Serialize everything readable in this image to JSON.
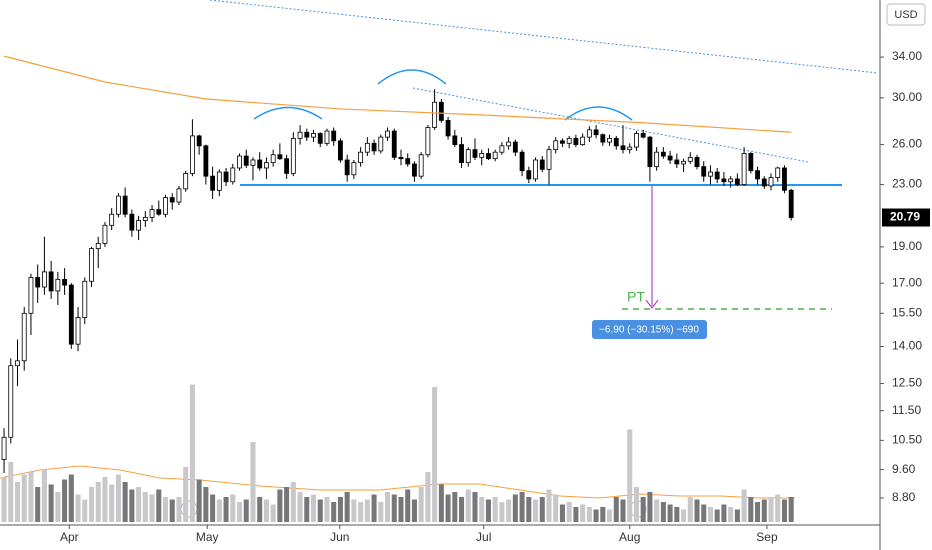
{
  "chart_data": {
    "type": "candlestick",
    "log_scale": true,
    "currency": "USD",
    "ylim": [
      8.1,
      40.5
    ],
    "yticks": [
      {
        "value": 8.8,
        "label": "8.80"
      },
      {
        "value": 9.6,
        "label": "9.60"
      },
      {
        "value": 10.5,
        "label": "10.50"
      },
      {
        "value": 11.5,
        "label": "11.50"
      },
      {
        "value": 12.5,
        "label": "12.50"
      },
      {
        "value": 14,
        "label": "14.00"
      },
      {
        "value": 15.5,
        "label": "15.50"
      },
      {
        "value": 17,
        "label": "17.00"
      },
      {
        "value": 19,
        "label": "19.00"
      },
      {
        "value": 23,
        "label": "23.00"
      },
      {
        "value": 26,
        "label": "26.00"
      },
      {
        "value": 30,
        "label": "30.00"
      },
      {
        "value": 34,
        "label": "34.00"
      }
    ],
    "xticks": [
      {
        "value": 9.7,
        "label": "Apr"
      },
      {
        "value": 30.2,
        "label": "May"
      },
      {
        "value": 49.9,
        "label": "Jun"
      },
      {
        "value": 71.3,
        "label": "Jul"
      },
      {
        "value": 93,
        "label": "Aug"
      },
      {
        "value": 113.4,
        "label": "Sep"
      }
    ],
    "xlim": [
      -0.6,
      130.2
    ],
    "last_price": 20.79,
    "up_color": "#ffffff",
    "down_color": "#000000",
    "candles": [
      [
        9.9,
        10.9,
        9.5,
        10.6
      ],
      [
        10.6,
        13.5,
        10.4,
        13.2
      ],
      [
        13.2,
        14.3,
        12.4,
        13.4
      ],
      [
        13.4,
        15.8,
        13.0,
        15.5
      ],
      [
        15.5,
        17.5,
        14.5,
        17.3
      ],
      [
        17.3,
        18.0,
        16.0,
        16.8
      ],
      [
        16.8,
        19.6,
        16.4,
        17.6
      ],
      [
        17.6,
        18.2,
        16.2,
        16.6
      ],
      [
        16.6,
        17.6,
        15.9,
        17.2
      ],
      [
        17.2,
        17.8,
        16.4,
        16.9
      ],
      [
        16.9,
        17.0,
        13.9,
        14.1
      ],
      [
        14.1,
        15.8,
        13.8,
        15.3
      ],
      [
        15.3,
        17.3,
        15.0,
        17.1
      ],
      [
        17.1,
        19.0,
        16.8,
        18.9
      ],
      [
        18.9,
        19.6,
        17.8,
        19.2
      ],
      [
        19.2,
        20.5,
        19.0,
        20.3
      ],
      [
        20.3,
        21.4,
        20.0,
        21.0
      ],
      [
        21.0,
        22.4,
        20.8,
        22.2
      ],
      [
        22.2,
        22.8,
        20.8,
        21.0
      ],
      [
        21.0,
        21.3,
        19.6,
        20.0
      ],
      [
        20.0,
        20.9,
        19.4,
        20.6
      ],
      [
        20.6,
        21.2,
        20.2,
        20.8
      ],
      [
        20.8,
        21.6,
        20.5,
        21.3
      ],
      [
        21.3,
        21.9,
        20.9,
        21.0
      ],
      [
        21.0,
        22.3,
        20.8,
        22.1
      ],
      [
        22.1,
        22.4,
        21.3,
        21.8
      ],
      [
        21.8,
        22.9,
        21.6,
        22.7
      ],
      [
        22.7,
        24.0,
        22.5,
        23.8
      ],
      [
        23.8,
        28.1,
        23.6,
        26.7
      ],
      [
        26.7,
        26.8,
        25.2,
        25.9
      ],
      [
        25.9,
        26.0,
        23.0,
        23.6
      ],
      [
        23.6,
        24.3,
        22.0,
        22.6
      ],
      [
        22.6,
        24.1,
        22.2,
        23.9
      ],
      [
        23.9,
        24.2,
        22.9,
        23.2
      ],
      [
        23.2,
        24.5,
        23.0,
        24.2
      ],
      [
        24.2,
        25.3,
        24.0,
        25.1
      ],
      [
        25.1,
        25.6,
        24.2,
        24.4
      ],
      [
        24.4,
        25.0,
        23.3,
        24.8
      ],
      [
        24.8,
        25.4,
        24.0,
        24.2
      ],
      [
        24.2,
        25.0,
        23.4,
        24.6
      ],
      [
        24.6,
        25.6,
        24.3,
        25.2
      ],
      [
        25.2,
        26.1,
        24.8,
        24.9
      ],
      [
        24.9,
        25.2,
        23.4,
        23.8
      ],
      [
        23.8,
        27.0,
        23.6,
        26.5
      ],
      [
        26.5,
        27.6,
        26.0,
        27.0
      ],
      [
        27.0,
        27.3,
        26.3,
        26.6
      ],
      [
        26.6,
        27.2,
        26.2,
        26.9
      ],
      [
        26.9,
        27.0,
        25.8,
        26.1
      ],
      [
        26.1,
        27.3,
        25.9,
        27.1
      ],
      [
        27.1,
        27.4,
        25.9,
        26.3
      ],
      [
        26.3,
        26.5,
        24.6,
        24.8
      ],
      [
        24.8,
        25.2,
        23.2,
        23.7
      ],
      [
        23.7,
        24.8,
        23.4,
        24.6
      ],
      [
        24.6,
        25.8,
        24.3,
        25.4
      ],
      [
        25.4,
        26.6,
        25.1,
        26.1
      ],
      [
        26.1,
        26.4,
        25.2,
        25.5
      ],
      [
        25.5,
        26.8,
        25.3,
        26.6
      ],
      [
        26.6,
        27.4,
        26.3,
        27.1
      ],
      [
        27.1,
        27.3,
        24.8,
        25.0
      ],
      [
        25.0,
        25.6,
        24.4,
        24.9
      ],
      [
        24.9,
        25.3,
        24.3,
        24.5
      ],
      [
        24.5,
        24.7,
        23.2,
        23.6
      ],
      [
        23.6,
        25.4,
        23.4,
        25.2
      ],
      [
        25.2,
        27.6,
        25.0,
        27.4
      ],
      [
        27.4,
        30.8,
        27.2,
        29.6
      ],
      [
        29.6,
        29.9,
        27.8,
        28.0
      ],
      [
        28.0,
        28.3,
        26.4,
        26.7
      ],
      [
        26.7,
        27.2,
        25.8,
        26.0
      ],
      [
        26.0,
        26.6,
        24.2,
        24.6
      ],
      [
        24.6,
        25.8,
        24.3,
        25.6
      ],
      [
        25.6,
        26.5,
        24.8,
        25.0
      ],
      [
        25.0,
        25.6,
        24.4,
        25.3
      ],
      [
        25.3,
        25.7,
        24.8,
        24.9
      ],
      [
        24.9,
        25.6,
        24.7,
        25.4
      ],
      [
        25.4,
        26.2,
        25.2,
        25.9
      ],
      [
        25.9,
        26.6,
        25.6,
        26.2
      ],
      [
        26.2,
        26.4,
        25.1,
        25.4
      ],
      [
        25.4,
        25.6,
        23.6,
        24.0
      ],
      [
        24.0,
        24.3,
        23.1,
        23.4
      ],
      [
        23.4,
        25.0,
        23.2,
        24.8
      ],
      [
        24.8,
        25.1,
        23.9,
        24.1
      ],
      [
        24.1,
        25.9,
        23.0,
        25.6
      ],
      [
        25.6,
        26.6,
        25.3,
        26.3
      ],
      [
        26.3,
        26.5,
        25.8,
        26.1
      ],
      [
        26.1,
        26.7,
        25.7,
        26.5
      ],
      [
        26.5,
        26.8,
        25.8,
        26.0
      ],
      [
        26.0,
        26.9,
        25.9,
        26.6
      ],
      [
        26.6,
        27.5,
        26.2,
        27.2
      ],
      [
        27.2,
        27.6,
        26.5,
        26.8
      ],
      [
        26.8,
        26.9,
        25.9,
        26.2
      ],
      [
        26.2,
        26.8,
        25.9,
        26.5
      ],
      [
        26.5,
        26.7,
        25.6,
        25.9
      ],
      [
        25.9,
        27.6,
        25.3,
        25.6
      ],
      [
        25.6,
        26.1,
        25.3,
        25.8
      ],
      [
        25.8,
        27.1,
        25.5,
        26.9
      ],
      [
        26.9,
        27.2,
        26.5,
        26.6
      ],
      [
        26.6,
        26.7,
        23.2,
        24.3
      ],
      [
        24.3,
        25.8,
        24.0,
        25.4
      ],
      [
        25.4,
        25.8,
        24.9,
        25.1
      ],
      [
        25.1,
        25.5,
        24.5,
        24.8
      ],
      [
        24.8,
        25.3,
        24.2,
        24.5
      ],
      [
        24.5,
        24.9,
        23.9,
        24.7
      ],
      [
        24.7,
        25.4,
        24.5,
        25.0
      ],
      [
        25.0,
        25.2,
        24.1,
        24.3
      ],
      [
        24.3,
        24.7,
        23.2,
        23.6
      ],
      [
        23.6,
        24.4,
        23.0,
        23.9
      ],
      [
        23.9,
        24.2,
        23.1,
        23.4
      ],
      [
        23.4,
        23.9,
        22.9,
        23.2
      ],
      [
        23.2,
        23.6,
        22.8,
        23.4
      ],
      [
        23.4,
        23.8,
        22.9,
        23.0
      ],
      [
        23.0,
        25.8,
        22.9,
        25.3
      ],
      [
        25.3,
        25.4,
        23.8,
        24.0
      ],
      [
        24.0,
        24.3,
        23.0,
        23.4
      ],
      [
        23.4,
        23.6,
        22.7,
        22.9
      ],
      [
        22.9,
        23.8,
        22.6,
        23.5
      ],
      [
        23.5,
        24.3,
        23.2,
        24.2
      ],
      [
        24.2,
        24.4,
        22.4,
        22.6
      ],
      [
        22.6,
        22.7,
        20.6,
        20.79
      ]
    ],
    "volume_lim": [
      0,
      6
    ],
    "volume": [
      1.8,
      2.4,
      1.6,
      1.9,
      2.0,
      1.4,
      2.1,
      1.5,
      1.2,
      1.7,
      1.9,
      1.1,
      0.9,
      1.4,
      1.6,
      1.8,
      1.5,
      1.9,
      1.6,
      1.3,
      1.4,
      1.2,
      1.1,
      1.3,
      1.0,
      0.9,
      1.0,
      2.2,
      5.5,
      1.7,
      1.4,
      1.1,
      0.9,
      1.0,
      1.1,
      0.8,
      0.9,
      3.2,
      1.0,
      0.9,
      0.7,
      1.3,
      1.4,
      1.6,
      1.2,
      1.0,
      1.1,
      0.9,
      1.0,
      0.8,
      1.0,
      1.2,
      0.9,
      0.8,
      0.9,
      1.1,
      0.8,
      1.2,
      1.1,
      1.0,
      1.3,
      0.9,
      1.4,
      2.0,
      5.4,
      1.5,
      1.1,
      1.2,
      1.0,
      1.3,
      1.2,
      1.0,
      0.9,
      1.0,
      0.8,
      0.9,
      1.1,
      1.2,
      1.0,
      0.9,
      1.0,
      1.3,
      1.1,
      0.7,
      0.8,
      0.6,
      0.7,
      0.6,
      0.5,
      0.6,
      0.5,
      1.0,
      0.9,
      3.7,
      1.4,
      1.0,
      1.2,
      0.9,
      0.8,
      0.7,
      0.6,
      0.5,
      1.0,
      0.9,
      0.7,
      0.6,
      0.5,
      0.7,
      0.6,
      0.5,
      1.3,
      1.0,
      0.8,
      0.9,
      1.0,
      1.1,
      0.9,
      1.0
    ],
    "ma": {
      "x": [
        0,
        15,
        30,
        50,
        70,
        95,
        117
      ],
      "values": [
        34.1,
        31.5,
        29.9,
        29.0,
        28.5,
        27.8,
        27.0
      ],
      "color": "#f5a040"
    },
    "target_label": "PT",
    "measure_label": "−6.90 (−30.15%) −690"
  }
}
